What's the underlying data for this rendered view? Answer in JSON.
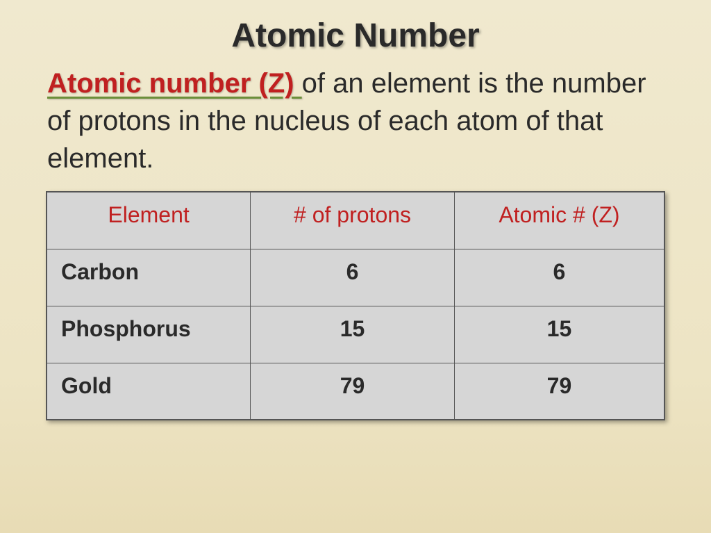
{
  "slide": {
    "title": "Atomic Number",
    "definition": {
      "key_term": "Atomic number (Z) ",
      "rest": "of an element is the number of protons in the nucleus of each atom of that element."
    }
  },
  "table": {
    "type": "table",
    "columns": [
      "Element",
      "# of protons",
      "Atomic # (Z)"
    ],
    "rows": [
      [
        "Carbon",
        "6",
        "6"
      ],
      [
        "Phosphorus",
        "15",
        "15"
      ],
      [
        "Gold",
        "79",
        "79"
      ]
    ],
    "header_color": "#c02020",
    "body_color": "#2a2a2a",
    "background_color": "#d6d6d6",
    "border_color": "#555555",
    "header_fontsize": 32,
    "body_fontsize": 32,
    "col_widths": [
      "33%",
      "33%",
      "34%"
    ],
    "col_align": [
      "left",
      "center",
      "center"
    ]
  },
  "styling": {
    "background_gradient_top": "#f0e9cf",
    "background_gradient_bottom": "#e8dcb5",
    "title_color": "#2a2a2a",
    "title_fontsize": 48,
    "body_fontsize": 40,
    "key_term_color": "#c02020",
    "key_term_underline_color": "#6b8f3a",
    "font_family": "Comic Sans MS"
  }
}
